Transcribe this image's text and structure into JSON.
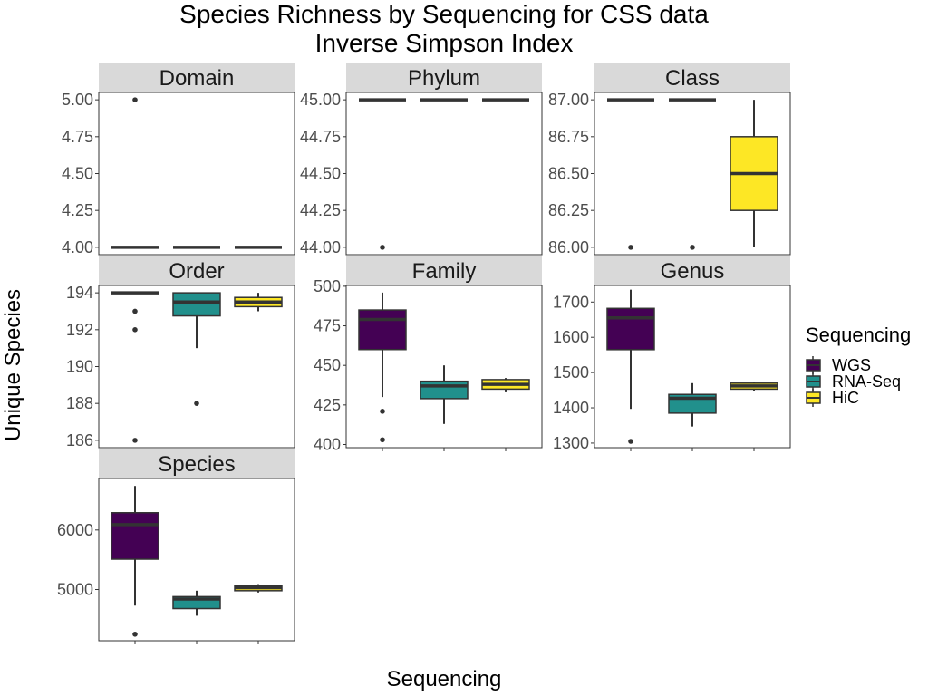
{
  "chart_data": {
    "type": "box",
    "title": "Species Richness by Sequencing for CSS data",
    "subtitle": "Inverse Simpson Index",
    "xlabel": "Sequencing",
    "ylabel": "Unique Species",
    "categories": [
      "WGS",
      "RNA-Seq",
      "HiC"
    ],
    "legend": {
      "title": "Sequencing",
      "position": "right",
      "entries": [
        {
          "label": "WGS",
          "color": "#440154"
        },
        {
          "label": "RNA-Seq",
          "color": "#21908C"
        },
        {
          "label": "HiC",
          "color": "#FDE725"
        }
      ]
    },
    "grid": false,
    "panels": [
      {
        "name": "Domain",
        "ylim": [
          3.95,
          5.05
        ],
        "ticks": [
          4.0,
          4.25,
          4.5,
          4.75,
          5.0
        ],
        "tick_labels": [
          "4.00",
          "4.25",
          "4.50",
          "4.75",
          "5.00"
        ],
        "boxes": [
          {
            "category": "WGS",
            "q1": 4,
            "median": 4,
            "q3": 4,
            "whisker_low": 4,
            "whisker_high": 4,
            "outliers": [
              5
            ]
          },
          {
            "category": "RNA-Seq",
            "q1": 4,
            "median": 4,
            "q3": 4,
            "whisker_low": 4,
            "whisker_high": 4,
            "outliers": []
          },
          {
            "category": "HiC",
            "q1": 4,
            "median": 4,
            "q3": 4,
            "whisker_low": 4,
            "whisker_high": 4,
            "outliers": []
          }
        ]
      },
      {
        "name": "Phylum",
        "ylim": [
          43.95,
          45.05
        ],
        "ticks": [
          44.0,
          44.25,
          44.5,
          44.75,
          45.0
        ],
        "tick_labels": [
          "44.00",
          "44.25",
          "44.50",
          "44.75",
          "45.00"
        ],
        "boxes": [
          {
            "category": "WGS",
            "q1": 45,
            "median": 45,
            "q3": 45,
            "whisker_low": 45,
            "whisker_high": 45,
            "outliers": [
              44
            ]
          },
          {
            "category": "RNA-Seq",
            "q1": 45,
            "median": 45,
            "q3": 45,
            "whisker_low": 45,
            "whisker_high": 45,
            "outliers": []
          },
          {
            "category": "HiC",
            "q1": 45,
            "median": 45,
            "q3": 45,
            "whisker_low": 45,
            "whisker_high": 45,
            "outliers": []
          }
        ]
      },
      {
        "name": "Class",
        "ylim": [
          85.95,
          87.05
        ],
        "ticks": [
          86.0,
          86.25,
          86.5,
          86.75,
          87.0
        ],
        "tick_labels": [
          "86.00",
          "86.25",
          "86.50",
          "86.75",
          "87.00"
        ],
        "boxes": [
          {
            "category": "WGS",
            "q1": 87,
            "median": 87,
            "q3": 87,
            "whisker_low": 87,
            "whisker_high": 87,
            "outliers": [
              86
            ]
          },
          {
            "category": "RNA-Seq",
            "q1": 87,
            "median": 87,
            "q3": 87,
            "whisker_low": 87,
            "whisker_high": 87,
            "outliers": [
              86
            ]
          },
          {
            "category": "HiC",
            "q1": 86.25,
            "median": 86.5,
            "q3": 86.75,
            "whisker_low": 86,
            "whisker_high": 87,
            "outliers": []
          }
        ]
      },
      {
        "name": "Order",
        "ylim": [
          185.6,
          194.4
        ],
        "ticks": [
          186,
          188,
          190,
          192,
          194
        ],
        "tick_labels": [
          "186",
          "188",
          "190",
          "192",
          "194"
        ],
        "boxes": [
          {
            "category": "WGS",
            "q1": 194,
            "median": 194,
            "q3": 194,
            "whisker_low": 194,
            "whisker_high": 194,
            "outliers": [
              193,
              192,
              186
            ]
          },
          {
            "category": "RNA-Seq",
            "q1": 192.75,
            "median": 193.5,
            "q3": 194,
            "whisker_low": 191,
            "whisker_high": 194,
            "outliers": [
              188
            ]
          },
          {
            "category": "HiC",
            "q1": 193.25,
            "median": 193.5,
            "q3": 193.75,
            "whisker_low": 193,
            "whisker_high": 194,
            "outliers": []
          }
        ]
      },
      {
        "name": "Family",
        "ylim": [
          398,
          500.5
        ],
        "ticks": [
          400,
          425,
          450,
          475,
          500
        ],
        "tick_labels": [
          "400",
          "425",
          "450",
          "475",
          "500"
        ],
        "boxes": [
          {
            "category": "WGS",
            "q1": 460,
            "median": 479,
            "q3": 485,
            "whisker_low": 430,
            "whisker_high": 496,
            "outliers": [
              421,
              403
            ]
          },
          {
            "category": "RNA-Seq",
            "q1": 429,
            "median": 437,
            "q3": 440,
            "whisker_low": 413,
            "whisker_high": 450,
            "outliers": []
          },
          {
            "category": "HiC",
            "q1": 435,
            "median": 438,
            "q3": 441,
            "whisker_low": 433,
            "whisker_high": 442,
            "outliers": []
          }
        ]
      },
      {
        "name": "Genus",
        "ylim": [
          1287,
          1747
        ],
        "ticks": [
          1300,
          1400,
          1500,
          1600,
          1700
        ],
        "tick_labels": [
          "1300",
          "1400",
          "1500",
          "1600",
          "1700"
        ],
        "boxes": [
          {
            "category": "WGS",
            "q1": 1565,
            "median": 1655,
            "q3": 1682,
            "whisker_low": 1397,
            "whisker_high": 1735,
            "outliers": [
              1305
            ]
          },
          {
            "category": "RNA-Seq",
            "q1": 1385,
            "median": 1427,
            "q3": 1438,
            "whisker_low": 1347,
            "whisker_high": 1470,
            "outliers": []
          },
          {
            "category": "HiC",
            "q1": 1453,
            "median": 1462,
            "q3": 1470,
            "whisker_low": 1449,
            "whisker_high": 1474,
            "outliers": []
          }
        ]
      },
      {
        "name": "Species",
        "ylim": [
          4140,
          6865
        ],
        "ticks": [
          5000,
          6000
        ],
        "tick_labels": [
          "5000",
          "6000"
        ],
        "boxes": [
          {
            "category": "WGS",
            "q1": 5510,
            "median": 6090,
            "q3": 6290,
            "whisker_low": 4730,
            "whisker_high": 6740,
            "outliers": [
              4250
            ]
          },
          {
            "category": "RNA-Seq",
            "q1": 4680,
            "median": 4840,
            "q3": 4880,
            "whisker_low": 4560,
            "whisker_high": 4980,
            "outliers": []
          },
          {
            "category": "HiC",
            "q1": 4980,
            "median": 5030,
            "q3": 5060,
            "whisker_low": 4950,
            "whisker_high": 5090,
            "outliers": []
          }
        ]
      }
    ]
  }
}
